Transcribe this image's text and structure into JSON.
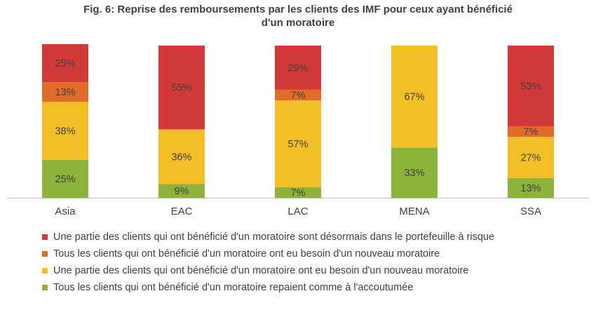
{
  "chart_data": {
    "type": "bar",
    "stacked": true,
    "title_lines": [
      "Fig. 6: Reprise des remboursements par les clients des IMF pour ceux ayant bénéficié",
      "d'un moratoire"
    ],
    "categories": [
      "Asia",
      "EAC",
      "LAC",
      "MENA",
      "SSA"
    ],
    "ylim": [
      0,
      100
    ],
    "grid": false,
    "legend_position": "bottom",
    "series": [
      {
        "name": "Tous les clients qui ont bénéficié d'un moratoire repaient comme à l'accoutumée",
        "color": "#8db33a",
        "values": [
          25,
          9,
          7,
          33,
          13
        ],
        "labels": [
          "25%",
          "9%",
          "7%",
          "33%",
          "13%"
        ]
      },
      {
        "name": "Une partie des clients qui ont bénéficié d'un moratoire ont eu besoin d'un nouveau moratoire",
        "color": "#f2bf26",
        "values": [
          38,
          36,
          57,
          67,
          27
        ],
        "labels": [
          "38%",
          "36%",
          "57%",
          "67%",
          "27%"
        ]
      },
      {
        "name": "Tous les clients qui ont bénéficié d'un moratoire ont eu besoin d'un nouveau moratoire",
        "color": "#e06c2a",
        "values": [
          13,
          0,
          7,
          0,
          7
        ],
        "labels": [
          "13%",
          "",
          "7%",
          "",
          "7%"
        ]
      },
      {
        "name": "Une partie des clients qui ont bénéficié d'un moratoire sont désormais dans le portefeuille à risque",
        "color": "#d23a3a",
        "values": [
          25,
          55,
          29,
          0,
          53
        ],
        "labels": [
          "25%",
          "55%",
          "29%",
          "",
          "53%"
        ]
      }
    ],
    "legend_order": [
      3,
      2,
      1,
      0
    ]
  }
}
